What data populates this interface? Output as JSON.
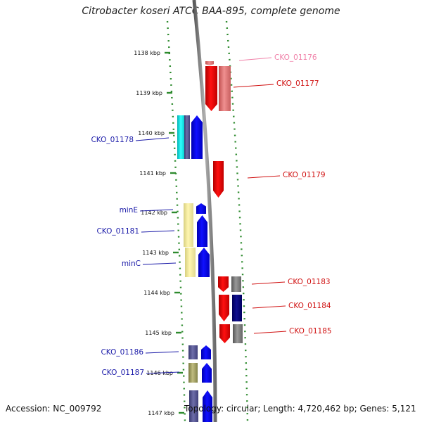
{
  "title": "Citrobacter koseri ATCC BAA-895, complete genome",
  "footer": {
    "accession": "Accession: NC_009792",
    "summary": "Topology: circular; Length: 4,720,462 bp; Genes: 5,121"
  },
  "colors": {
    "forward_label": "#1a1aa8",
    "reverse_label": "#d01010",
    "faded_label": "#f080a8",
    "axis": "#8a8a8a",
    "tick": "#2e8b2e"
  },
  "ruler": {
    "labels": [
      "1138 kbp",
      "1139 kbp",
      "1140 kbp",
      "1141 kbp",
      "1142 kbp",
      "1143 kbp",
      "1144 kbp",
      "1145 kbp",
      "1146 kbp",
      "1147 kbp"
    ]
  },
  "genes": [
    {
      "label": "CKO_01176",
      "strand": "reverse",
      "faded": true
    },
    {
      "label": "CKO_01177",
      "strand": "reverse"
    },
    {
      "label": "CKO_01178",
      "strand": "forward"
    },
    {
      "label": "CKO_01179",
      "strand": "reverse"
    },
    {
      "label": "minE",
      "strand": "forward"
    },
    {
      "label": "CKO_01181",
      "strand": "forward"
    },
    {
      "label": "minC",
      "strand": "forward"
    },
    {
      "label": "CKO_01183",
      "strand": "reverse"
    },
    {
      "label": "CKO_01184",
      "strand": "reverse"
    },
    {
      "label": "CKO_01185",
      "strand": "reverse"
    },
    {
      "label": "CKO_01186",
      "strand": "forward"
    },
    {
      "label": "CKO_01187",
      "strand": "forward"
    }
  ]
}
